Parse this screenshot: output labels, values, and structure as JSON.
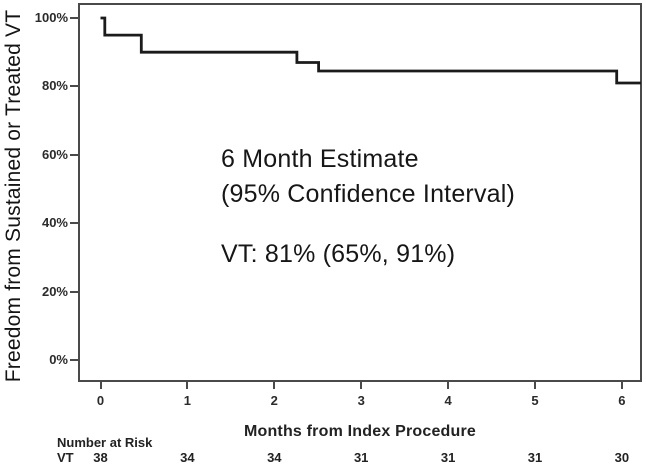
{
  "chart_data": {
    "type": "line",
    "subtype": "kaplan_meier_step",
    "title": "",
    "xlabel": "Months from Index Procedure",
    "ylabel": "Freedom from Sustained or Treated VT",
    "xlim": [
      -0.26,
      6.22
    ],
    "ylim": [
      0,
      100
    ],
    "xticks": [
      0,
      1,
      2,
      3,
      4,
      5,
      6
    ],
    "ytick_values": [
      100,
      80,
      60,
      40,
      20,
      0
    ],
    "ytick_labels": [
      "100%",
      "80%",
      "60%",
      "40%",
      "20%",
      "0%"
    ],
    "grid": false,
    "legend": false,
    "line_color": "#1b1b1b",
    "series": [
      {
        "name": "VT",
        "points": [
          [
            0,
            100
          ],
          [
            0.05,
            100
          ],
          [
            0.05,
            95
          ],
          [
            0.47,
            95
          ],
          [
            0.47,
            90
          ],
          [
            2.26,
            90
          ],
          [
            2.26,
            87
          ],
          [
            2.51,
            87
          ],
          [
            2.51,
            84.5
          ],
          [
            5.94,
            84.5
          ],
          [
            5.94,
            81
          ],
          [
            6.22,
            81
          ]
        ]
      }
    ],
    "annotations": [
      "6 Month Estimate",
      "(95% Confidence Interval)",
      "VT: 81% (65%, 91%)"
    ],
    "six_month_estimate": {
      "VT": "81% (65%, 91%)"
    },
    "number_at_risk": {
      "label": "Number at Risk",
      "rows": [
        {
          "name": "VT",
          "values": [
            38,
            34,
            34,
            31,
            31,
            31,
            30
          ]
        }
      ]
    }
  },
  "annotation": {
    "line1": "6 Month Estimate",
    "line2": "(95% Confidence Interval)",
    "line3": "VT: 81% (65%, 91%)"
  },
  "risk_table": {
    "title": "Number at Risk",
    "row_label": "VT",
    "values": [
      "38",
      "34",
      "34",
      "31",
      "31",
      "31",
      "30"
    ]
  }
}
